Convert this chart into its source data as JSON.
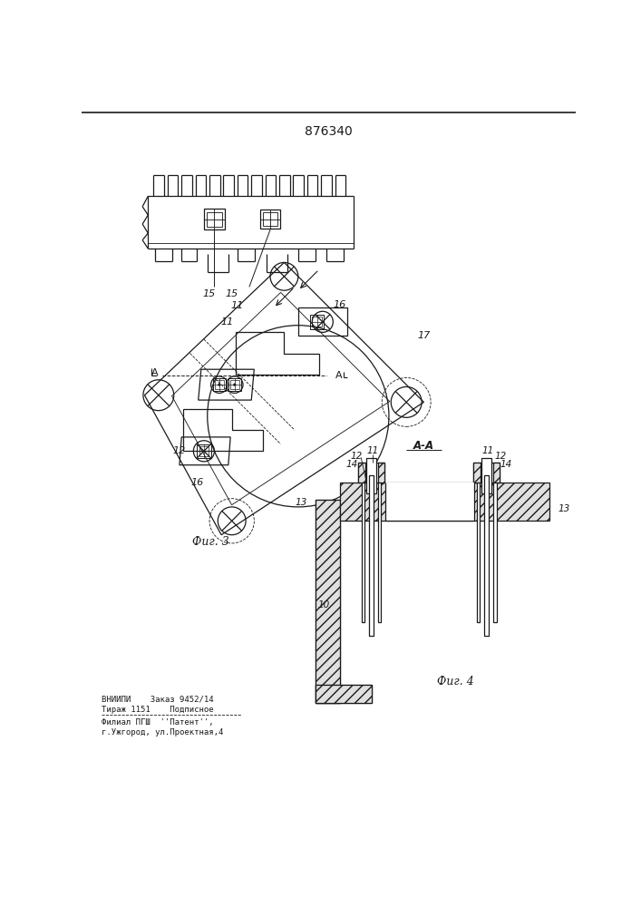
{
  "title": "876340",
  "title_fontsize": 10,
  "fig3_label": "Фиг. 3",
  "fig4_label": "Фиг. 4",
  "footer_line1": "ВНИИПИ    Заказ 9452/14",
  "footer_line2": "Тираж 1151    Подписное",
  "footer_line3": "Филиал ПГШ  ''Патент'',",
  "footer_line4": "г.Ужгород, ул.Проектная,4",
  "bg_color": "#ffffff",
  "line_color": "#1a1a1a"
}
